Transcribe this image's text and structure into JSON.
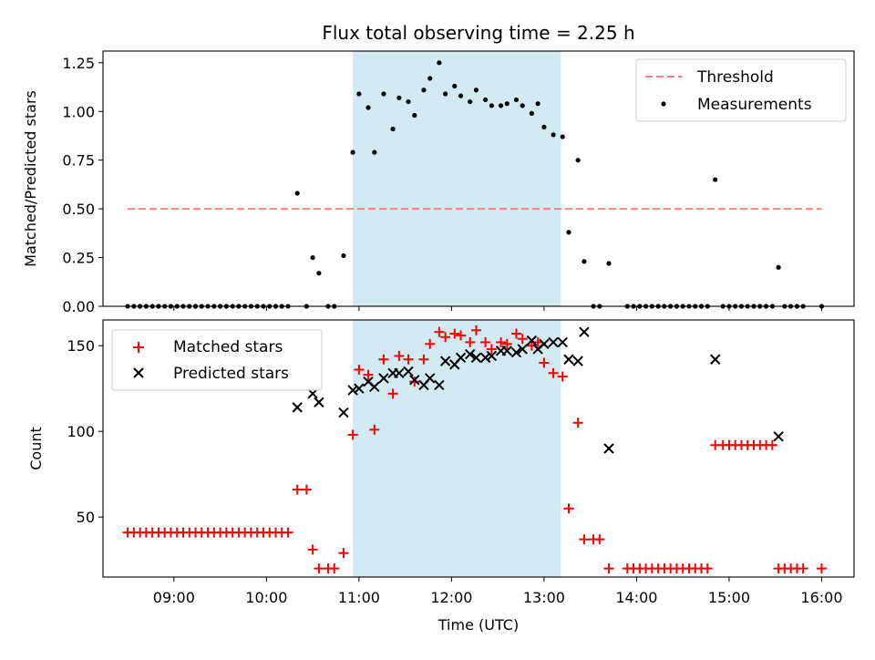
{
  "chart_data": [
    {
      "type": "scatter",
      "title": "Flux total observing time = 2.25 h",
      "xlabel": "",
      "ylabel": "Matched/Predicted stars",
      "xlim": [
        "08:14",
        "16:21"
      ],
      "ylim": [
        0,
        1.31
      ],
      "yticks": [
        0.0,
        0.25,
        0.5,
        0.75,
        1.0,
        1.25
      ],
      "ytick_labels": [
        "0.00",
        "0.25",
        "0.50",
        "0.75",
        "1.00",
        "1.25"
      ],
      "legend_position": "top-right",
      "shaded_span": {
        "start": "10:56",
        "end": "13:11",
        "color": "#add8e6"
      },
      "threshold": {
        "name": "Threshold",
        "value": 0.5,
        "x": [
          "08:30",
          "16:00"
        ],
        "color": "#ff7f7f",
        "style": "dashed"
      },
      "series": [
        {
          "name": "Measurements",
          "marker": "dot",
          "color": "#000000",
          "points": [
            [
              "08:30",
              0
            ],
            [
              "08:34",
              0
            ],
            [
              "08:38",
              0
            ],
            [
              "08:42",
              0
            ],
            [
              "08:46",
              0
            ],
            [
              "08:50",
              0
            ],
            [
              "08:54",
              0
            ],
            [
              "08:58",
              0
            ],
            [
              "09:02",
              0
            ],
            [
              "09:06",
              0
            ],
            [
              "09:10",
              0
            ],
            [
              "09:14",
              0
            ],
            [
              "09:18",
              0
            ],
            [
              "09:22",
              0
            ],
            [
              "09:26",
              0
            ],
            [
              "09:30",
              0
            ],
            [
              "09:34",
              0
            ],
            [
              "09:38",
              0
            ],
            [
              "09:42",
              0
            ],
            [
              "09:46",
              0
            ],
            [
              "09:50",
              0
            ],
            [
              "09:54",
              0
            ],
            [
              "09:58",
              0
            ],
            [
              "10:02",
              0
            ],
            [
              "10:06",
              0
            ],
            [
              "10:10",
              0
            ],
            [
              "10:14",
              0
            ],
            [
              "10:20",
              0.58
            ],
            [
              "10:26",
              0
            ],
            [
              "10:30",
              0.25
            ],
            [
              "10:34",
              0.17
            ],
            [
              "10:40",
              0
            ],
            [
              "10:44",
              0
            ],
            [
              "10:50",
              0.26
            ],
            [
              "10:56",
              0.79
            ],
            [
              "11:00",
              1.09
            ],
            [
              "11:06",
              1.02
            ],
            [
              "11:10",
              0.79
            ],
            [
              "11:16",
              1.09
            ],
            [
              "11:22",
              0.91
            ],
            [
              "11:26",
              1.07
            ],
            [
              "11:32",
              1.05
            ],
            [
              "11:36",
              0.98
            ],
            [
              "11:42",
              1.11
            ],
            [
              "11:46",
              1.17
            ],
            [
              "11:52",
              1.25
            ],
            [
              "11:56",
              1.09
            ],
            [
              "12:02",
              1.13
            ],
            [
              "12:06",
              1.08
            ],
            [
              "12:12",
              1.05
            ],
            [
              "12:16",
              1.11
            ],
            [
              "12:22",
              1.06
            ],
            [
              "12:26",
              1.03
            ],
            [
              "12:32",
              1.03
            ],
            [
              "12:36",
              1.04
            ],
            [
              "12:42",
              1.06
            ],
            [
              "12:46",
              1.03
            ],
            [
              "12:52",
              0.99
            ],
            [
              "12:56",
              1.04
            ],
            [
              "13:00",
              0.92
            ],
            [
              "13:06",
              0.88
            ],
            [
              "13:12",
              0.87
            ],
            [
              "13:16",
              0.38
            ],
            [
              "13:22",
              0.75
            ],
            [
              "13:26",
              0.23
            ],
            [
              "13:32",
              0
            ],
            [
              "13:36",
              0
            ],
            [
              "13:42",
              0.22
            ],
            [
              "13:54",
              0
            ],
            [
              "13:58",
              0
            ],
            [
              "14:02",
              0
            ],
            [
              "14:06",
              0
            ],
            [
              "14:10",
              0
            ],
            [
              "14:14",
              0
            ],
            [
              "14:18",
              0
            ],
            [
              "14:22",
              0
            ],
            [
              "14:26",
              0
            ],
            [
              "14:30",
              0
            ],
            [
              "14:34",
              0
            ],
            [
              "14:38",
              0
            ],
            [
              "14:42",
              0
            ],
            [
              "14:46",
              0
            ],
            [
              "14:51",
              0.65
            ],
            [
              "14:56",
              0
            ],
            [
              "15:00",
              0
            ],
            [
              "15:04",
              0
            ],
            [
              "15:08",
              0
            ],
            [
              "15:12",
              0
            ],
            [
              "15:16",
              0
            ],
            [
              "15:20",
              0
            ],
            [
              "15:24",
              0
            ],
            [
              "15:28",
              0
            ],
            [
              "15:32",
              0.2
            ],
            [
              "15:36",
              0
            ],
            [
              "15:40",
              0
            ],
            [
              "15:44",
              0
            ],
            [
              "15:48",
              0
            ],
            [
              "16:00",
              0
            ]
          ]
        }
      ]
    },
    {
      "type": "scatter",
      "title": "",
      "xlabel": "Time (UTC)",
      "ylabel": "Count",
      "xlim": [
        "08:14",
        "16:21"
      ],
      "ylim": [
        15,
        165
      ],
      "yticks": [
        50,
        100,
        150
      ],
      "ytick_labels": [
        "50",
        "100",
        "150"
      ],
      "xticks": [
        "09:00",
        "10:00",
        "11:00",
        "12:00",
        "13:00",
        "14:00",
        "15:00",
        "16:00"
      ],
      "legend_position": "top-left",
      "shaded_span": {
        "start": "10:56",
        "end": "13:11",
        "color": "#add8e6"
      },
      "series": [
        {
          "name": "Matched stars",
          "marker": "plus",
          "color": "#ff0000",
          "points": [
            [
              "08:30",
              41
            ],
            [
              "08:34",
              41
            ],
            [
              "08:38",
              41
            ],
            [
              "08:42",
              41
            ],
            [
              "08:46",
              41
            ],
            [
              "08:50",
              41
            ],
            [
              "08:54",
              41
            ],
            [
              "08:58",
              41
            ],
            [
              "09:02",
              41
            ],
            [
              "09:06",
              41
            ],
            [
              "09:10",
              41
            ],
            [
              "09:14",
              41
            ],
            [
              "09:18",
              41
            ],
            [
              "09:22",
              41
            ],
            [
              "09:26",
              41
            ],
            [
              "09:30",
              41
            ],
            [
              "09:34",
              41
            ],
            [
              "09:38",
              41
            ],
            [
              "09:42",
              41
            ],
            [
              "09:46",
              41
            ],
            [
              "09:50",
              41
            ],
            [
              "09:54",
              41
            ],
            [
              "09:58",
              41
            ],
            [
              "10:02",
              41
            ],
            [
              "10:06",
              41
            ],
            [
              "10:10",
              41
            ],
            [
              "10:14",
              41
            ],
            [
              "10:20",
              66
            ],
            [
              "10:26",
              66
            ],
            [
              "10:30",
              31
            ],
            [
              "10:34",
              20
            ],
            [
              "10:40",
              20
            ],
            [
              "10:44",
              20
            ],
            [
              "10:50",
              29
            ],
            [
              "10:56",
              98
            ],
            [
              "11:00",
              136
            ],
            [
              "11:06",
              133
            ],
            [
              "11:10",
              101
            ],
            [
              "11:16",
              142
            ],
            [
              "11:22",
              122
            ],
            [
              "11:26",
              144
            ],
            [
              "11:32",
              142
            ],
            [
              "11:36",
              129
            ],
            [
              "11:42",
              142
            ],
            [
              "11:46",
              151
            ],
            [
              "11:52",
              158
            ],
            [
              "11:56",
              155
            ],
            [
              "12:02",
              157
            ],
            [
              "12:06",
              156
            ],
            [
              "12:12",
              152
            ],
            [
              "12:16",
              159
            ],
            [
              "12:22",
              152
            ],
            [
              "12:26",
              148
            ],
            [
              "12:32",
              152
            ],
            [
              "12:36",
              151
            ],
            [
              "12:42",
              157
            ],
            [
              "12:46",
              154
            ],
            [
              "12:52",
              150
            ],
            [
              "12:56",
              152
            ],
            [
              "13:00",
              140
            ],
            [
              "13:06",
              134
            ],
            [
              "13:12",
              132
            ],
            [
              "13:16",
              55
            ],
            [
              "13:22",
              105
            ],
            [
              "13:26",
              37
            ],
            [
              "13:32",
              37
            ],
            [
              "13:36",
              37
            ],
            [
              "13:42",
              20
            ],
            [
              "13:54",
              20
            ],
            [
              "13:58",
              20
            ],
            [
              "14:02",
              20
            ],
            [
              "14:06",
              20
            ],
            [
              "14:10",
              20
            ],
            [
              "14:14",
              20
            ],
            [
              "14:18",
              20
            ],
            [
              "14:22",
              20
            ],
            [
              "14:26",
              20
            ],
            [
              "14:30",
              20
            ],
            [
              "14:34",
              20
            ],
            [
              "14:38",
              20
            ],
            [
              "14:42",
              20
            ],
            [
              "14:46",
              20
            ],
            [
              "14:51",
              92
            ],
            [
              "14:56",
              92
            ],
            [
              "15:00",
              92
            ],
            [
              "15:04",
              92
            ],
            [
              "15:08",
              92
            ],
            [
              "15:12",
              92
            ],
            [
              "15:16",
              92
            ],
            [
              "15:20",
              92
            ],
            [
              "15:24",
              92
            ],
            [
              "15:28",
              92
            ],
            [
              "15:32",
              20
            ],
            [
              "15:36",
              20
            ],
            [
              "15:40",
              20
            ],
            [
              "15:44",
              20
            ],
            [
              "15:48",
              20
            ],
            [
              "16:00",
              20
            ]
          ]
        },
        {
          "name": "Predicted stars",
          "marker": "x",
          "color": "#000000",
          "points": [
            [
              "10:20",
              114
            ],
            [
              "10:30",
              122
            ],
            [
              "10:34",
              117
            ],
            [
              "10:50",
              111
            ],
            [
              "10:56",
              124
            ],
            [
              "11:00",
              125
            ],
            [
              "11:06",
              129
            ],
            [
              "11:10",
              126
            ],
            [
              "11:16",
              131
            ],
            [
              "11:22",
              134
            ],
            [
              "11:26",
              134
            ],
            [
              "11:32",
              135
            ],
            [
              "11:36",
              130
            ],
            [
              "11:42",
              127
            ],
            [
              "11:46",
              131
            ],
            [
              "11:52",
              127
            ],
            [
              "11:56",
              141
            ],
            [
              "12:02",
              139
            ],
            [
              "12:06",
              143
            ],
            [
              "12:12",
              145
            ],
            [
              "12:16",
              143
            ],
            [
              "12:22",
              143
            ],
            [
              "12:26",
              144
            ],
            [
              "12:32",
              147
            ],
            [
              "12:36",
              147
            ],
            [
              "12:42",
              146
            ],
            [
              "12:46",
              148
            ],
            [
              "12:52",
              153
            ],
            [
              "12:56",
              148
            ],
            [
              "13:00",
              151
            ],
            [
              "13:06",
              152
            ],
            [
              "13:12",
              152
            ],
            [
              "13:16",
              142
            ],
            [
              "13:22",
              141
            ],
            [
              "13:26",
              158
            ],
            [
              "13:42",
              90
            ],
            [
              "14:51",
              142
            ],
            [
              "15:32",
              97
            ]
          ]
        }
      ]
    }
  ]
}
